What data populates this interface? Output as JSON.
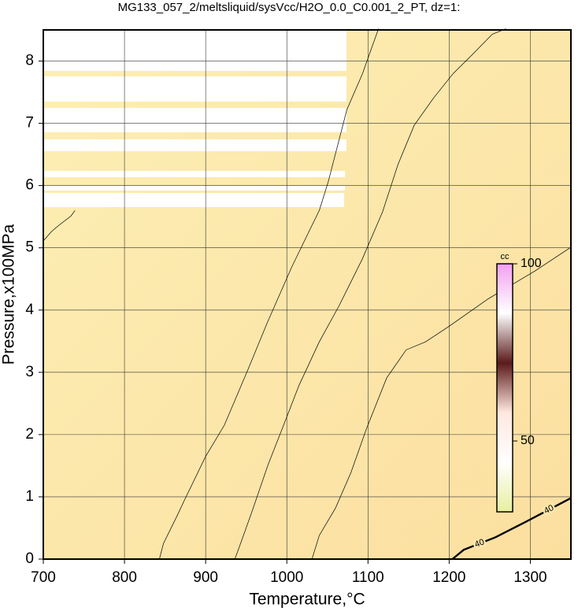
{
  "chart_data": {
    "type": "contour",
    "title": "MG133_057_2/meltsliquid/sysVcc/H2O_0.0_C0.001_2_PT, dz=1:",
    "x_label": "Temperature,°C",
    "y_label": "Pressure,x100MPa",
    "xlim": [
      700,
      1350
    ],
    "xticks": [
      700,
      800,
      900,
      1000,
      1100,
      1200,
      1300
    ],
    "ylim": [
      0,
      8.5
    ],
    "yticks": [
      0,
      1,
      2,
      3,
      4,
      5,
      6,
      7,
      8
    ],
    "grid": true,
    "series": [
      {
        "color": "#000000",
        "x": [
          843,
          848,
          865,
          874,
          900,
          923,
          952,
          976,
          1006,
          1025,
          1040,
          1051,
          1074,
          1093,
          1113
        ],
        "values": [
          0,
          0.25,
          0.7,
          0.95,
          1.65,
          2.15,
          3.04,
          3.8,
          4.69,
          5.2,
          5.6,
          6.06,
          7.22,
          7.79,
          8.52
        ]
      },
      {
        "color": "#000000",
        "x": [
          936,
          943,
          957,
          977,
          996,
          1015,
          1040,
          1064,
          1093,
          1118,
          1137,
          1157,
          1181,
          1205,
          1229,
          1253,
          1270
        ],
        "values": [
          0,
          0.25,
          0.76,
          1.52,
          2.15,
          2.79,
          3.49,
          4.06,
          4.82,
          5.58,
          6.34,
          6.97,
          7.41,
          7.8,
          8.11,
          8.43,
          8.52
        ]
      },
      {
        "color": "#000000",
        "x": [
          1031,
          1040,
          1060,
          1079,
          1098,
          1123,
          1147,
          1171,
          1200,
          1248,
          1306,
          1350
        ],
        "values": [
          0,
          0.38,
          0.82,
          1.39,
          2.09,
          2.91,
          3.36,
          3.49,
          3.74,
          4.18,
          4.63,
          5.01
        ]
      },
      {
        "color": "#000000",
        "x": [
          700,
          710,
          719,
          734,
          739
        ],
        "values": [
          5.11,
          5.26,
          5.36,
          5.51,
          5.6
        ]
      },
      {
        "color": "#000000",
        "label": "40",
        "x": [
          1204,
          1218,
          1257,
          1296,
          1350
        ],
        "values": [
          0,
          0.15,
          0.35,
          0.61,
          0.98
        ]
      }
    ],
    "colorbar": {
      "label": "cc",
      "lim": [
        30,
        100
      ],
      "ticks": [
        50,
        100
      ],
      "colors": [
        "#e6f0a0",
        "#ffffff",
        "#ffe8e0",
        "#5a1a1a",
        "#ffffff",
        "#f2a0f0"
      ]
    }
  }
}
